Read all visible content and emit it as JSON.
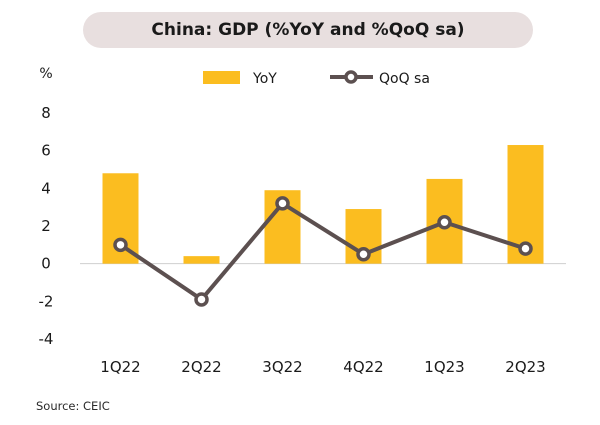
{
  "title": "China: GDP (%YoY and %QoQ sa)",
  "source": "Source: CEIC",
  "colors": {
    "yoy_bar": "#fbbd20",
    "qoq_line": "#5c5050",
    "title_bg": "#e8dfdf"
  },
  "chart_data": {
    "type": "bar",
    "title": "China: GDP (%YoY and %QoQ sa)",
    "xlabel": "",
    "ylabel": "%",
    "ylim": [
      -4,
      8
    ],
    "yticks": [
      8,
      6,
      4,
      2,
      0,
      -2,
      -4
    ],
    "categories": [
      "1Q22",
      "2Q22",
      "3Q22",
      "4Q22",
      "1Q23",
      "2Q23"
    ],
    "series": [
      {
        "name": "YoY",
        "type": "bar",
        "values": [
          4.8,
          0.4,
          3.9,
          2.9,
          4.5,
          6.3
        ]
      },
      {
        "name": "QoQ sa",
        "type": "line",
        "values": [
          1.0,
          -1.9,
          3.2,
          0.5,
          2.2,
          0.8
        ]
      }
    ],
    "legend": "top",
    "grid": false
  }
}
